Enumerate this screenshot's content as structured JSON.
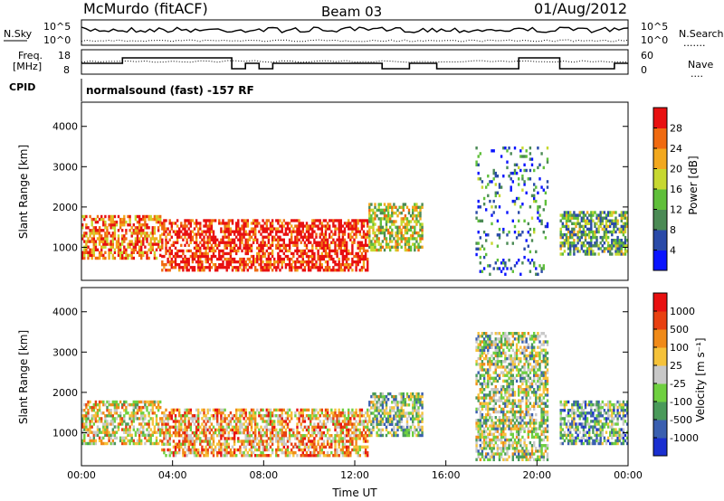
{
  "header": {
    "station": "McMurdo (fitACF)",
    "beam": "Beam 03",
    "date": "01/Aug/2012"
  },
  "noise_panel": {
    "left_label": "N.Sky",
    "left_ticks": [
      "10^5",
      "10^0"
    ],
    "right_ticks": [
      "10^5",
      "10^0"
    ],
    "right_label": "N.Search",
    "right_legend": "......."
  },
  "freq_panel": {
    "left_label_1": "Freq.",
    "left_label_2": "[MHz]",
    "left_ticks": [
      "18",
      "8"
    ],
    "right_ticks": [
      "60",
      "0"
    ],
    "right_label": "Nave",
    "right_legend": "...."
  },
  "cpid_panel": {
    "label": "CPID",
    "text": "normalsound (fast) -157 RF"
  },
  "chart_data": [
    {
      "type": "heatmap",
      "name": "power",
      "ylabel": "Slant Range [km]",
      "y_ticks": [
        "4000",
        "3000",
        "2000",
        "1000"
      ],
      "y_tick_values": [
        4000,
        3000,
        2000,
        1000
      ],
      "ylim": [
        180,
        4600
      ],
      "xlim": [
        0,
        24
      ],
      "colorbar": {
        "label": "Power [dB]",
        "ticks": [
          "28",
          "24",
          "20",
          "16",
          "12",
          "8",
          "4"
        ],
        "tick_values": [
          28,
          24,
          20,
          16,
          12,
          8,
          4
        ],
        "range": [
          0,
          32
        ],
        "colors": [
          "#0a14ff",
          "#2a4aa8",
          "#4b8a55",
          "#5fbf3a",
          "#c7d830",
          "#f2a81e",
          "#f06a10",
          "#e81010"
        ]
      },
      "regions": [
        {
          "t": [
            0.0,
            3.5
          ],
          "r": [
            700,
            1800
          ],
          "level": 0.78
        },
        {
          "t": [
            3.5,
            12.6
          ],
          "r": [
            400,
            1700
          ],
          "level": 0.95
        },
        {
          "t": [
            12.6,
            15.0
          ],
          "r": [
            900,
            2100
          ],
          "level": 0.55
        },
        {
          "t": [
            17.3,
            20.5
          ],
          "r": [
            300,
            3500
          ],
          "level": 0.25
        },
        {
          "t": [
            21.0,
            24.0
          ],
          "r": [
            800,
            1900
          ],
          "level": 0.4
        }
      ]
    },
    {
      "type": "heatmap",
      "name": "velocity",
      "ylabel": "Slant Range [km]",
      "xlabel": "Time UT",
      "y_ticks": [
        "4000",
        "3000",
        "2000",
        "1000"
      ],
      "y_tick_values": [
        4000,
        3000,
        2000,
        1000
      ],
      "ylim": [
        180,
        4600
      ],
      "xlim": [
        0,
        24
      ],
      "x_ticks": [
        "00:00",
        "04:00",
        "08:00",
        "12:00",
        "16:00",
        "20:00",
        "00:00"
      ],
      "x_tick_values": [
        0,
        4,
        8,
        12,
        16,
        20,
        24
      ],
      "colorbar": {
        "label": "Velocity [m s⁻¹]",
        "ticks": [
          "1000",
          "500",
          "100",
          "25",
          "-25",
          "-100",
          "-500",
          "-1000"
        ],
        "colors": [
          "#1a2fd0",
          "#3a5fb0",
          "#4a9a5a",
          "#6fd040",
          "#c8c8c8",
          "#f5c23a",
          "#f08a18",
          "#e84010",
          "#e81010"
        ]
      },
      "regions": [
        {
          "t": [
            0.0,
            3.5
          ],
          "r": [
            700,
            1800
          ],
          "level": 0.55
        },
        {
          "t": [
            3.5,
            12.6
          ],
          "r": [
            400,
            1600
          ],
          "level": 0.66
        },
        {
          "t": [
            12.6,
            15.0
          ],
          "r": [
            900,
            2000
          ],
          "level": 0.4
        },
        {
          "t": [
            17.3,
            20.5
          ],
          "r": [
            300,
            3500
          ],
          "level": 0.45
        },
        {
          "t": [
            21.0,
            24.0
          ],
          "r": [
            700,
            1800
          ],
          "level": 0.35
        }
      ]
    }
  ]
}
